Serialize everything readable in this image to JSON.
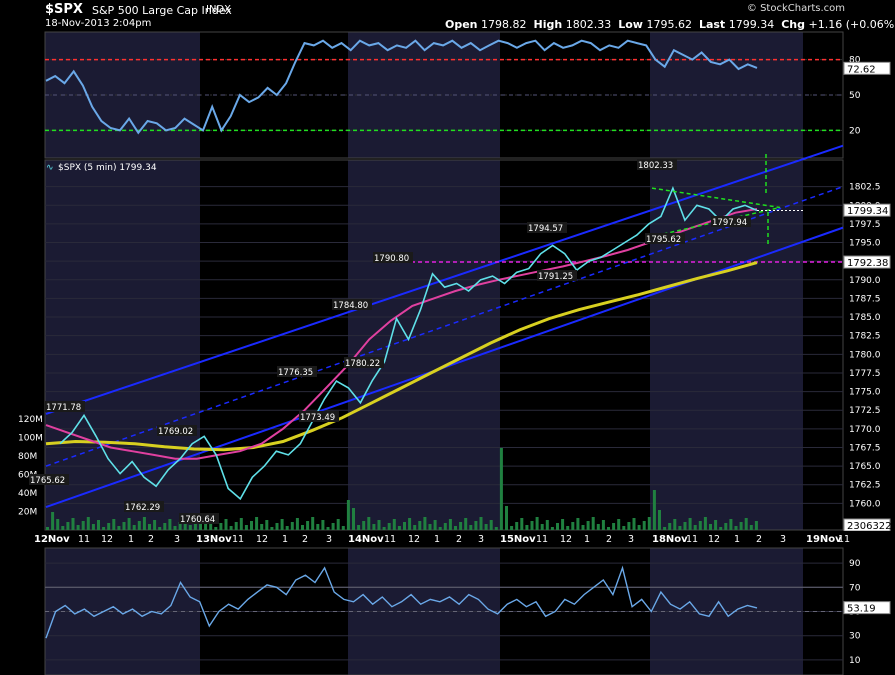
{
  "header": {
    "symbol": "$SPX",
    "name": "S&P 500 Large Cap Index",
    "exchange": "INDX",
    "datetime": "18-Nov-2013 2:04pm",
    "credit": "© StockCharts.com",
    "open_label": "Open",
    "open": "1798.82",
    "high_label": "High",
    "high": "1802.33",
    "low_label": "Low",
    "low": "1795.62",
    "last_label": "Last",
    "last": "1799.34",
    "chg_label": "Chg",
    "chg": "+1.16 (+0.06%)",
    "chg_arrow": "▲"
  },
  "main_legend": "$SPX (5 min) 1799.34",
  "colors": {
    "background": "#000000",
    "shade": "#1b1b33",
    "price": "#5fe0e8",
    "ma_fast": "#e040a0",
    "ma_slow": "#d8d020",
    "channel": "#1a2aff",
    "rsi": "#6aa8e8",
    "overbought": "#ff3030",
    "oversold": "#20e020",
    "support": "#e020e0",
    "volume": "#208040"
  },
  "chart_data": [
    {
      "type": "line",
      "panel": "RSI top",
      "yticks": [
        20,
        50,
        80
      ],
      "levels": {
        "overbought": 80,
        "oversold": 20
      },
      "last_value": "72.62",
      "ylim": [
        0,
        100
      ],
      "values": [
        62,
        66,
        60,
        70,
        58,
        40,
        28,
        22,
        20,
        30,
        18,
        28,
        26,
        20,
        22,
        30,
        25,
        20,
        40,
        20,
        32,
        50,
        44,
        48,
        56,
        50,
        60,
        78,
        94,
        92,
        96,
        90,
        94,
        88,
        96,
        92,
        94,
        88,
        92,
        90,
        96,
        88,
        94,
        92,
        96,
        90,
        94,
        88,
        92,
        96,
        94,
        90,
        94,
        96,
        88,
        94,
        90,
        92,
        96,
        94,
        88,
        92,
        90,
        96,
        94,
        92,
        80,
        74,
        88,
        84,
        80,
        86,
        78,
        76,
        80,
        72,
        76,
        73
      ]
    },
    {
      "type": "line",
      "panel": "price",
      "ylim": [
        1757.5,
        1805
      ],
      "yticks": [
        "1760.0",
        "1762.5",
        "1765.0",
        "1767.5",
        "1770.0",
        "1772.5",
        "1775.0",
        "1777.5",
        "1780.0",
        "1782.5",
        "1785.0",
        "1787.5",
        "1790.0",
        "1792.5",
        "1795.0",
        "1797.5",
        "1800.0",
        "1802.5"
      ],
      "volume_ticks": [
        "20M",
        "40M",
        "60M",
        "80M",
        "100M",
        "120M"
      ],
      "xlabels": [
        "12Nov",
        "11",
        "12",
        "1",
        "2",
        "3",
        "13Nov",
        "11",
        "12",
        "1",
        "2",
        "3",
        "14Nov",
        "11",
        "12",
        "1",
        "2",
        "3",
        "15Nov",
        "11",
        "12",
        "1",
        "2",
        "3",
        "18Nov",
        "11",
        "12",
        "1",
        "2",
        "3",
        "19Nov",
        "11"
      ],
      "price": [
        1768,
        1769.5,
        1771.8,
        1769,
        1766,
        1764,
        1765.6,
        1763.5,
        1762.3,
        1764.5,
        1766,
        1768,
        1769,
        1766.5,
        1762,
        1760.6,
        1763.5,
        1765,
        1767,
        1766.5,
        1768,
        1771,
        1774,
        1776.4,
        1775.5,
        1773.5,
        1776.5,
        1779,
        1784.8,
        1782,
        1786,
        1790.8,
        1789,
        1789.5,
        1788.5,
        1790,
        1790.5,
        1789.5,
        1791,
        1791.5,
        1793.5,
        1794.6,
        1793.5,
        1791.3,
        1792.5,
        1793,
        1794,
        1795,
        1796,
        1797.5,
        1798.5,
        1802.3,
        1798,
        1800,
        1799.5,
        1797.9,
        1799.5,
        1800,
        1799.3
      ],
      "ma_fast": [
        1770.5,
        1769.5,
        1768.5,
        1767.5,
        1767,
        1766.5,
        1766,
        1766,
        1766.5,
        1767,
        1768,
        1770,
        1772.5,
        1775.5,
        1778.5,
        1782,
        1784.5,
        1786.5,
        1787.5,
        1788.5,
        1789.3,
        1790,
        1790.6,
        1791.2,
        1791.8,
        1792.5,
        1793.2,
        1794,
        1795,
        1796,
        1797,
        1798,
        1799,
        1799.5
      ],
      "ma_slow": [
        1768,
        1768.3,
        1768.2,
        1768,
        1767.6,
        1767.3,
        1767.2,
        1767.5,
        1768.3,
        1769.8,
        1771.5,
        1773.5,
        1775.5,
        1777.5,
        1779.5,
        1781.5,
        1783.3,
        1784.8,
        1786,
        1787,
        1788,
        1789.1,
        1790.2,
        1791.2,
        1792.3
      ],
      "labels": [
        {
          "text": "1771.78",
          "value": 1771.78
        },
        {
          "text": "1765.62",
          "value": 1765.62
        },
        {
          "text": "1762.29",
          "value": 1762.29
        },
        {
          "text": "1769.02",
          "value": 1769.02
        },
        {
          "text": "1760.64",
          "value": 1760.64
        },
        {
          "text": "1776.35",
          "value": 1776.35
        },
        {
          "text": "1773.49",
          "value": 1773.49
        },
        {
          "text": "1784.80",
          "value": 1784.8
        },
        {
          "text": "1780.22",
          "value": 1780.22
        },
        {
          "text": "1790.80",
          "value": 1790.8
        },
        {
          "text": "1791.25",
          "value": 1791.25
        },
        {
          "text": "1794.57",
          "value": 1794.57
        },
        {
          "text": "1802.33",
          "value": 1802.33
        },
        {
          "text": "1795.62",
          "value": 1795.62
        },
        {
          "text": "1797.94",
          "value": 1797.94
        }
      ],
      "last_price_tag": "1799.34",
      "support_level": 1792.38,
      "support_tag": "1792.38",
      "volume_tag": "2306322",
      "channel_upper": [
        1772,
        1808
      ],
      "channel_lower": [
        1759.5,
        1797
      ],
      "channel_mid": [
        1765,
        1802.5
      ]
    },
    {
      "type": "line",
      "panel": "RSI bottom",
      "yticks": [
        10,
        30,
        50,
        70,
        90
      ],
      "levels": {
        "upper": 70,
        "mid": 50
      },
      "last_value": "53.19",
      "ylim": [
        0,
        100
      ],
      "values": [
        28,
        50,
        55,
        48,
        52,
        46,
        50,
        54,
        48,
        52,
        46,
        50,
        48,
        55,
        74,
        62,
        58,
        38,
        50,
        56,
        52,
        60,
        66,
        72,
        70,
        64,
        76,
        80,
        74,
        86,
        66,
        60,
        58,
        64,
        56,
        62,
        54,
        58,
        64,
        56,
        60,
        58,
        62,
        56,
        64,
        60,
        52,
        48,
        56,
        60,
        54,
        58,
        46,
        50,
        60,
        56,
        64,
        70,
        76,
        64,
        86,
        54,
        60,
        50,
        66,
        56,
        52,
        58,
        48,
        46,
        58,
        46,
        52,
        55,
        53
      ]
    }
  ]
}
